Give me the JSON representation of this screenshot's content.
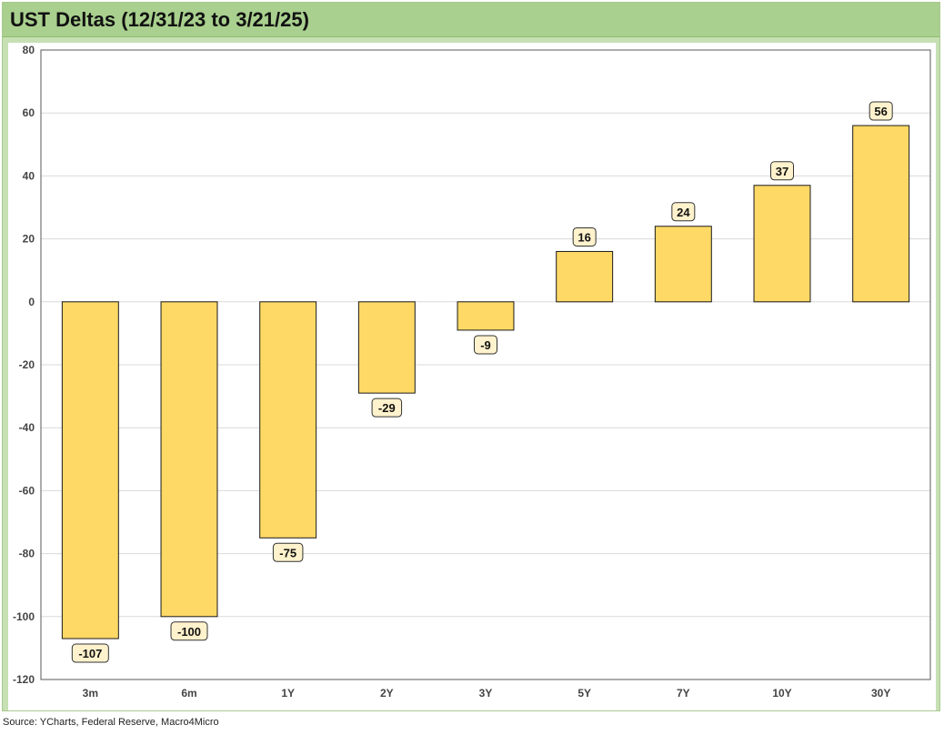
{
  "title": "UST Deltas (12/31/23 to 3/21/25)",
  "source": "Source: YCharts, Federal Reserve, Macro4Micro",
  "colors": {
    "bar_fill": "#ffd966",
    "bar_stroke": "#1a1a1a",
    "label_fill": "#fff2cc",
    "frame": "#c6e0b4",
    "title_bar": "#a9d08e",
    "gridline": "#d9d9d9"
  },
  "chart_data": {
    "type": "bar",
    "categories": [
      "3m",
      "6m",
      "1Y",
      "2Y",
      "3Y",
      "5Y",
      "7Y",
      "10Y",
      "30Y"
    ],
    "values": [
      -107,
      -100,
      -75,
      -29,
      -9,
      16,
      24,
      37,
      56
    ],
    "title": "UST Deltas (12/31/23 to 3/21/25)",
    "xlabel": "",
    "ylabel": "",
    "ylim": [
      -120,
      80
    ],
    "yticks": [
      80,
      60,
      40,
      20,
      0,
      -20,
      -40,
      -60,
      -80,
      -100,
      -120
    ],
    "grid": true,
    "data_labels": true
  }
}
